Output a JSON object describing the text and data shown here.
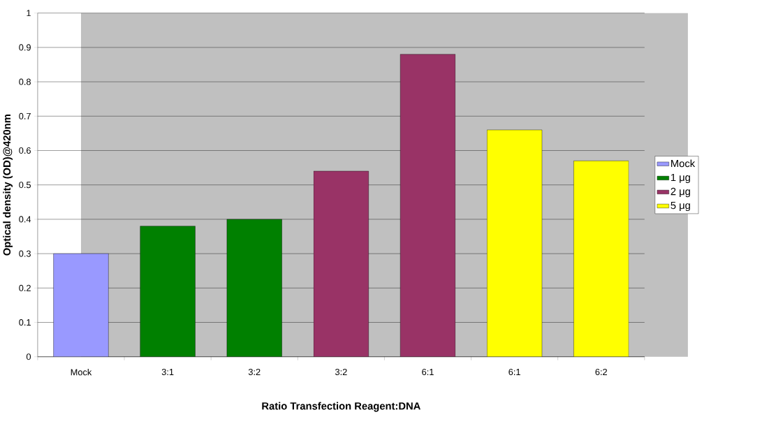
{
  "chart_data": {
    "type": "bar",
    "xlabel": "Ratio Transfection Reagent:DNA",
    "ylabel": "Optical density (OD)@420nm",
    "categories": [
      "Mock",
      "3:1",
      "3:2",
      "3:2",
      "6:1",
      "6:1",
      "6:2"
    ],
    "series": [
      {
        "name": "Mock",
        "color": "#9999ff",
        "values": [
          0.3,
          null,
          null,
          null,
          null,
          null,
          null
        ]
      },
      {
        "name": "1 μg",
        "color": "#008000",
        "values": [
          null,
          0.38,
          0.4,
          null,
          null,
          null,
          null
        ]
      },
      {
        "name": "2 μg",
        "color": "#993366",
        "values": [
          null,
          null,
          null,
          0.54,
          0.88,
          null,
          null
        ]
      },
      {
        "name": "5 μg",
        "color": "#ffff00",
        "values": [
          null,
          null,
          null,
          null,
          null,
          0.66,
          0.57
        ]
      }
    ],
    "ylim": [
      0,
      1
    ],
    "yticks": [
      0,
      0.1,
      0.2,
      0.3,
      0.4,
      0.5,
      0.6,
      0.7,
      0.8,
      0.9,
      1
    ],
    "grid": "y",
    "legend": "right"
  }
}
